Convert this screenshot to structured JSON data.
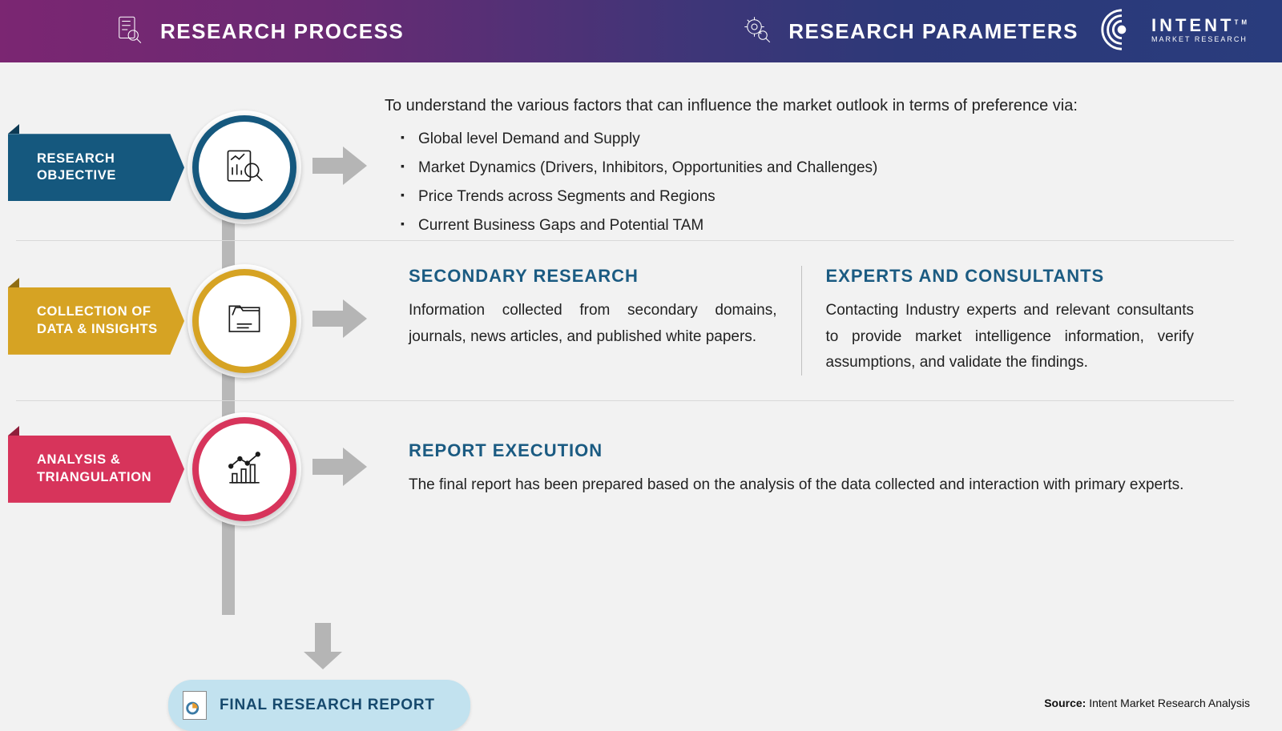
{
  "header": {
    "left_title": "RESEARCH PROCESS",
    "right_title": "RESEARCH PARAMETERS",
    "gradient": [
      "#7b2672",
      "#293c7d"
    ]
  },
  "logo": {
    "main": "INTENT",
    "sub": "MARKET RESEARCH",
    "tm": "TM"
  },
  "connector_color": "#b8b8b8",
  "arrow_color": "#b5b5b5",
  "steps": [
    {
      "label": "RESEARCH\nOBJECTIVE",
      "color": "#15587e",
      "fold_color": "#0d3a54",
      "icon": "report-search-icon",
      "content_type": "list",
      "intro": "To understand the various factors that can influence the market outlook in terms of preference via:",
      "items": [
        "Global level Demand and Supply",
        "Market Dynamics (Drivers, Inhibitors, Opportunities and Challenges)",
        "Price Trends across Segments and Regions",
        "Current Business Gaps and Potential TAM"
      ]
    },
    {
      "label": "COLLECTION OF\nDATA & INSIGHTS",
      "color": "#d6a323",
      "fold_color": "#8f6d14",
      "icon": "folder-data-icon",
      "content_type": "two_col",
      "columns": [
        {
          "title": "SECONDARY RESEARCH",
          "body": "Information collected from secondary domains, journals, news articles, and published white papers."
        },
        {
          "title": "EXPERTS AND CONSULTANTS",
          "body": "Contacting Industry experts and relevant consultants to provide market intelligence information, verify assumptions, and validate the findings."
        }
      ]
    },
    {
      "label": "ANALYSIS &\nTRIANGULATION",
      "color": "#d7345b",
      "fold_color": "#8e1f3b",
      "icon": "analytics-chart-icon",
      "content_type": "single",
      "single_title": "REPORT EXECUTION",
      "single_body": "The final report has been prepared based on the analysis of the data collected and interaction with primary experts."
    }
  ],
  "final": {
    "label": "FINAL RESEARCH REPORT",
    "pill_color": "#c2e2ef",
    "text_color": "#16496d",
    "doc_accent": "#e89b2e"
  },
  "source": {
    "label": "Source:",
    "value": "Intent Market Research Analysis"
  },
  "typography": {
    "header_title_size": 26,
    "chevron_label_size": 16.5,
    "body_text_size": 19,
    "col_title_size": 22,
    "col_title_color": "#1b5b82"
  },
  "background_color": "#f2f2f2"
}
